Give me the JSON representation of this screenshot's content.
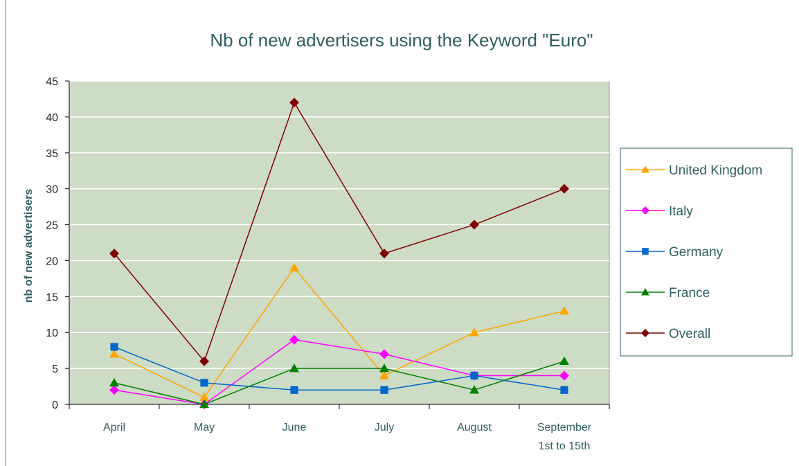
{
  "chart_data": {
    "type": "line",
    "title": "Nb of new advertisers using the Keyword \"Euro\"",
    "xlabel": "",
    "ylabel": "nb of new advertisers",
    "categories": [
      "April",
      "May",
      "June",
      "July",
      "August",
      "September 1st to 15th"
    ],
    "category_lines": [
      [
        "April"
      ],
      [
        "May"
      ],
      [
        "June"
      ],
      [
        "July"
      ],
      [
        "August"
      ],
      [
        "September",
        "1st to 15th"
      ]
    ],
    "ylim": [
      0,
      45
    ],
    "yticks": [
      0,
      5,
      10,
      15,
      20,
      25,
      30,
      35,
      40,
      45
    ],
    "grid": true,
    "legend_position": "right",
    "plot_background": "#cddcc5",
    "series": [
      {
        "name": "United Kingdom",
        "values": [
          7,
          1,
          19,
          4,
          10,
          13
        ],
        "color": "#ffa500",
        "marker": "triangle"
      },
      {
        "name": "Italy",
        "values": [
          2,
          0,
          9,
          7,
          4,
          4
        ],
        "color": "#ff00ff",
        "marker": "diamond"
      },
      {
        "name": "Germany",
        "values": [
          8,
          3,
          2,
          2,
          4,
          2
        ],
        "color": "#0066cc",
        "marker": "square"
      },
      {
        "name": "France",
        "values": [
          3,
          0,
          5,
          5,
          2,
          6
        ],
        "color": "#008000",
        "marker": "triangle"
      },
      {
        "name": "Overall",
        "values": [
          21,
          6,
          42,
          21,
          25,
          30
        ],
        "color": "#7f0000",
        "marker": "diamond"
      }
    ]
  }
}
